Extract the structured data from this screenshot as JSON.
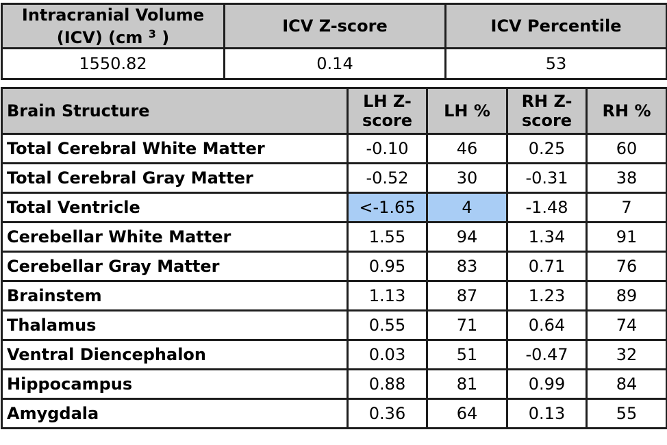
{
  "icv_table": {
    "headers": [
      {
        "line1": "Intracranial Volume",
        "line2": "(ICV) (cm",
        "superscript": "3",
        "line2_end": ")"
      },
      "ICV Z-score",
      "ICV Percentile"
    ],
    "row": [
      "1550.82",
      "0.14",
      "53"
    ]
  },
  "brain_table": {
    "headers": [
      "Brain Structure",
      "LH Z-score",
      "LH %",
      "RH Z-score",
      "RH %"
    ],
    "rows": [
      [
        "Total Cerebral White Matter",
        "-0.10",
        "46",
        "0.25",
        "60"
      ],
      [
        "Total Cerebral Gray Matter",
        "-0.52",
        "30",
        "-0.31",
        "38"
      ],
      [
        "Total Ventricle",
        "<-1.65",
        "4",
        "-1.48",
        "7"
      ],
      [
        "Cerebellar White Matter",
        "1.55",
        "94",
        "1.34",
        "91"
      ],
      [
        "Cerebellar Gray Matter",
        "0.95",
        "83",
        "0.71",
        "76"
      ],
      [
        "Brainstem",
        "1.13",
        "87",
        "1.23",
        "89"
      ],
      [
        "Thalamus",
        "0.55",
        "71",
        "0.64",
        "74"
      ],
      [
        "Ventral Diencephalon",
        "0.03",
        "51",
        "-0.47",
        "32"
      ],
      [
        "Hippocampus",
        "0.88",
        "81",
        "0.99",
        "84"
      ],
      [
        "Amygdala",
        "0.36",
        "64",
        "0.13",
        "55"
      ]
    ],
    "highlighted_cells": [
      {
        "row": 2,
        "col": 1
      },
      {
        "row": 2,
        "col": 2
      }
    ],
    "highlight_color": "#a9cdf5"
  }
}
